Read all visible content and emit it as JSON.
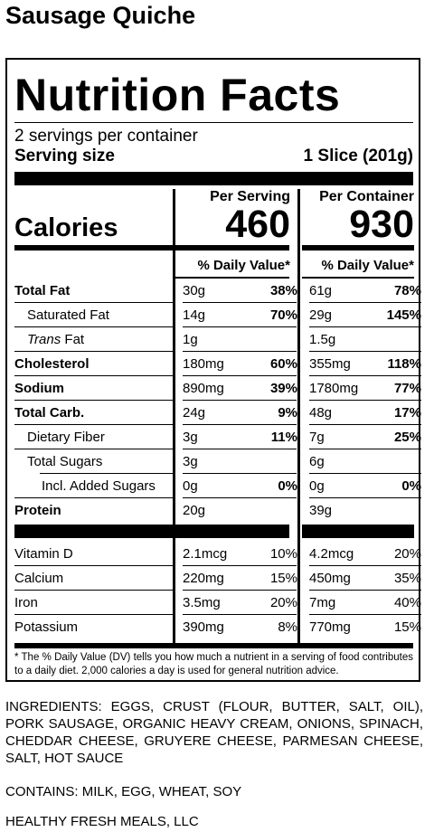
{
  "product_title": "Sausage Quiche",
  "label": {
    "title": "Nutrition Facts",
    "servings": "2 servings per container",
    "serving_size_label": "Serving size",
    "serving_size_value": "1 Slice (201g)",
    "col_per_serving": "Per Serving",
    "col_per_container": "Per Container",
    "calories_label": "Calories",
    "calories_serving": "460",
    "calories_container": "930",
    "dv_header": "% Daily Value*",
    "nutrients": [
      {
        "name": "Total Fat",
        "ps_amt": "30g",
        "ps_dv": "38%",
        "pc_amt": "61g",
        "pc_dv": "78%"
      },
      {
        "name": "Saturated Fat",
        "ps_amt": "14g",
        "ps_dv": "70%",
        "pc_amt": "29g",
        "pc_dv": "145%"
      },
      {
        "name": "Trans",
        "name_suffix": " Fat",
        "ps_amt": "1g",
        "ps_dv": "",
        "pc_amt": "1.5g",
        "pc_dv": ""
      },
      {
        "name": "Cholesterol",
        "ps_amt": "180mg",
        "ps_dv": "60%",
        "pc_amt": "355mg",
        "pc_dv": "118%"
      },
      {
        "name": "Sodium",
        "ps_amt": "890mg",
        "ps_dv": "39%",
        "pc_amt": "1780mg",
        "pc_dv": "77%"
      },
      {
        "name": "Total Carb.",
        "ps_amt": "24g",
        "ps_dv": "9%",
        "pc_amt": "48g",
        "pc_dv": "17%"
      },
      {
        "name": "Dietary Fiber",
        "ps_amt": "3g",
        "ps_dv": "11%",
        "pc_amt": "7g",
        "pc_dv": "25%"
      },
      {
        "name": "Total Sugars",
        "ps_amt": "3g",
        "ps_dv": "",
        "pc_amt": "6g",
        "pc_dv": ""
      },
      {
        "name": "Incl. Added Sugars",
        "ps_amt": "0g",
        "ps_dv": "0%",
        "pc_amt": "0g",
        "pc_dv": "0%"
      },
      {
        "name": "Protein",
        "ps_amt": "20g",
        "ps_dv": "",
        "pc_amt": "39g",
        "pc_dv": ""
      }
    ],
    "vitamins": [
      {
        "name": "Vitamin D",
        "ps_amt": "2.1mcg",
        "ps_dv": "10%",
        "pc_amt": "4.2mcg",
        "pc_dv": "20%"
      },
      {
        "name": "Calcium",
        "ps_amt": "220mg",
        "ps_dv": "15%",
        "pc_amt": "450mg",
        "pc_dv": "35%"
      },
      {
        "name": "Iron",
        "ps_amt": "3.5mg",
        "ps_dv": "20%",
        "pc_amt": "7mg",
        "pc_dv": "40%"
      },
      {
        "name": "Potassium",
        "ps_amt": "390mg",
        "ps_dv": "8%",
        "pc_amt": "770mg",
        "pc_dv": "15%"
      }
    ],
    "footnote": "* The % Daily Value (DV) tells you how much a nutrient in a serving of food contributes to a daily diet. 2,000 calories a day is used for general nutrition advice."
  },
  "ingredients": "INGREDIENTS: EGGS, CRUST (FLOUR, BUTTER, SALT, OIL), PORK SAUSAGE, ORGANIC HEAVY CREAM, ONIONS, SPINACH, CHEDDAR CHEESE, GRUYERE CHEESE, PARMESAN CHEESE, SALT, HOT SAUCE",
  "contains": "CONTAINS: MILK, EGG, WHEAT, SOY",
  "company": "HEALTHY FRESH MEALS, LLC"
}
